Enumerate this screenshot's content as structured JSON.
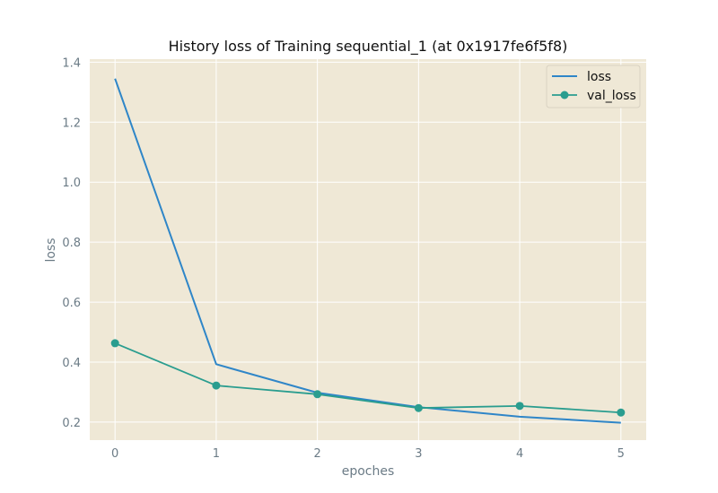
{
  "chart_data": {
    "type": "line",
    "title": "History loss of Training sequential_1 (at 0x1917fe6f5f8)",
    "xlabel": "epoches",
    "ylabel": "loss",
    "x": [
      0,
      1,
      2,
      3,
      4,
      5
    ],
    "x_ticks": [
      "0",
      "1",
      "2",
      "3",
      "4",
      "5"
    ],
    "y_ticks": [
      "0.2",
      "0.4",
      "0.6",
      "0.8",
      "1.0",
      "1.2",
      "1.4"
    ],
    "xlim": [
      -0.25,
      5.25
    ],
    "ylim": [
      0.14,
      1.41
    ],
    "grid": true,
    "legend_position": "top-right",
    "background_color": "#efe8d6",
    "series": [
      {
        "name": "loss",
        "color": "#2f86c8",
        "marker": "none",
        "values": [
          1.345,
          0.393,
          0.298,
          0.25,
          0.218,
          0.198
        ]
      },
      {
        "name": "val_loss",
        "color": "#2a9d8f",
        "marker": "circle",
        "values": [
          0.463,
          0.322,
          0.293,
          0.247,
          0.254,
          0.232
        ]
      }
    ]
  }
}
